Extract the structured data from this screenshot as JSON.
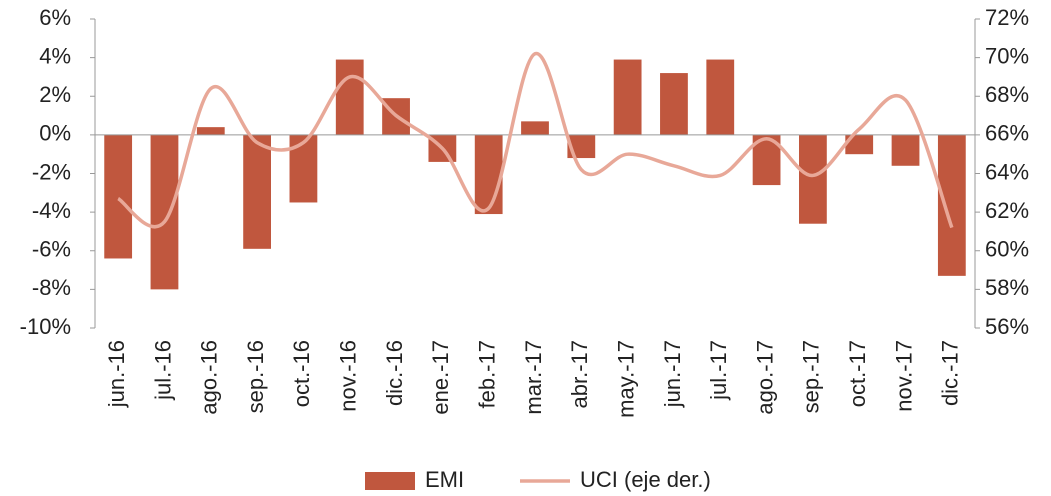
{
  "chart_data": {
    "type": "bar-line",
    "categories": [
      "jun.-16",
      "jul.-16",
      "ago.-16",
      "sep.-16",
      "oct.-16",
      "nov.-16",
      "dic.-16",
      "ene.-17",
      "feb.-17",
      "mar.-17",
      "abr.-17",
      "may.-17",
      "jun.-17",
      "jul.-17",
      "ago.-17",
      "sep.-17",
      "oct.-17",
      "nov.-17",
      "dic.-17"
    ],
    "series": [
      {
        "name": "EMI",
        "type": "bar",
        "color": "#c0573e",
        "axis": "y",
        "values": [
          -6.4,
          -8.0,
          0.4,
          -5.9,
          -3.5,
          3.9,
          1.9,
          -1.4,
          -4.1,
          0.7,
          -1.2,
          3.9,
          3.2,
          3.9,
          -2.6,
          -4.6,
          -1.0,
          -1.6,
          -7.3
        ]
      },
      {
        "name": "UCI (eje der.)",
        "type": "line",
        "color": "#e8a898",
        "axis": "y2",
        "values": [
          62.7,
          61.5,
          68.4,
          65.6,
          65.6,
          69.0,
          67.0,
          65.3,
          62.2,
          70.2,
          64.2,
          65.0,
          64.4,
          63.9,
          65.8,
          63.9,
          66.3,
          67.8,
          61.2
        ]
      }
    ],
    "ylim": [
      -10,
      6
    ],
    "yticks": [
      {
        "value": -10,
        "label": "-10%"
      },
      {
        "value": -8,
        "label": "-8%"
      },
      {
        "value": -6,
        "label": "-6%"
      },
      {
        "value": -4,
        "label": "-4%"
      },
      {
        "value": -2,
        "label": "-2%"
      },
      {
        "value": 0,
        "label": "0%"
      },
      {
        "value": 2,
        "label": "2%"
      },
      {
        "value": 4,
        "label": "4%"
      },
      {
        "value": 6,
        "label": "6%"
      }
    ],
    "y2lim": [
      56,
      72
    ],
    "y2ticks": [
      {
        "value": 56,
        "label": "56%"
      },
      {
        "value": 58,
        "label": "58%"
      },
      {
        "value": 60,
        "label": "60%"
      },
      {
        "value": 62,
        "label": "62%"
      },
      {
        "value": 64,
        "label": "64%"
      },
      {
        "value": 66,
        "label": "66%"
      },
      {
        "value": 68,
        "label": "68%"
      },
      {
        "value": 70,
        "label": "70%"
      },
      {
        "value": 72,
        "label": "72%"
      }
    ],
    "legend": "bottom"
  }
}
